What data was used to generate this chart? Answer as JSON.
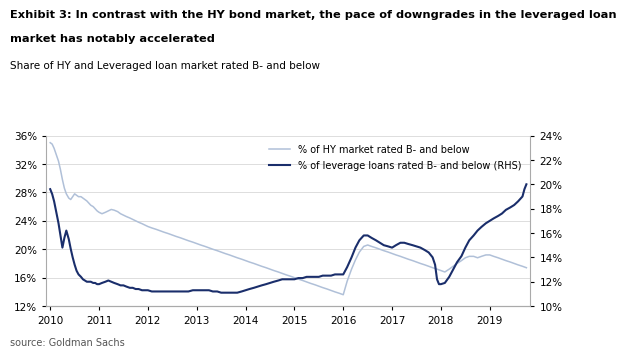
{
  "title_line1": "Exhibit 3: In contrast with the HY bond market, the pace of downgrades in the leveraged loan",
  "title_line2": "market has notably accelerated",
  "subtitle": "Share of HY and Leveraged loan market rated B- and below",
  "source": "source: Goldman Sachs",
  "legend1": "% of HY market rated B- and below",
  "legend2": "% of leverage loans rated B- and below (RHS)",
  "color_hy": "#b0c0d8",
  "color_ll": "#1a2e6b",
  "ylim_left": [
    0.12,
    0.36
  ],
  "ylim_right": [
    0.1,
    0.24
  ],
  "yticks_left": [
    0.12,
    0.16,
    0.2,
    0.24,
    0.28,
    0.32,
    0.36
  ],
  "yticks_right": [
    0.1,
    0.12,
    0.14,
    0.16,
    0.18,
    0.2,
    0.22,
    0.24
  ],
  "hy_data": [
    [
      2010.0,
      0.35
    ],
    [
      2010.04,
      0.348
    ],
    [
      2010.08,
      0.342
    ],
    [
      2010.12,
      0.334
    ],
    [
      2010.17,
      0.324
    ],
    [
      2010.21,
      0.312
    ],
    [
      2010.25,
      0.298
    ],
    [
      2010.29,
      0.286
    ],
    [
      2010.33,
      0.278
    ],
    [
      2010.38,
      0.272
    ],
    [
      2010.42,
      0.27
    ],
    [
      2010.46,
      0.274
    ],
    [
      2010.5,
      0.278
    ],
    [
      2010.54,
      0.276
    ],
    [
      2010.58,
      0.274
    ],
    [
      2010.63,
      0.274
    ],
    [
      2010.67,
      0.272
    ],
    [
      2010.71,
      0.27
    ],
    [
      2010.75,
      0.268
    ],
    [
      2010.79,
      0.265
    ],
    [
      2010.83,
      0.262
    ],
    [
      2010.88,
      0.26
    ],
    [
      2010.92,
      0.257
    ],
    [
      2010.96,
      0.254
    ],
    [
      2011.0,
      0.252
    ],
    [
      2011.06,
      0.25
    ],
    [
      2011.13,
      0.252
    ],
    [
      2011.19,
      0.254
    ],
    [
      2011.25,
      0.256
    ],
    [
      2011.31,
      0.255
    ],
    [
      2011.38,
      0.253
    ],
    [
      2011.44,
      0.25
    ],
    [
      2011.5,
      0.248
    ],
    [
      2011.56,
      0.246
    ],
    [
      2011.63,
      0.244
    ],
    [
      2011.69,
      0.242
    ],
    [
      2011.75,
      0.24
    ],
    [
      2011.81,
      0.238
    ],
    [
      2011.88,
      0.236
    ],
    [
      2011.94,
      0.234
    ],
    [
      2012.0,
      0.232
    ],
    [
      2012.08,
      0.23
    ],
    [
      2012.17,
      0.228
    ],
    [
      2012.25,
      0.226
    ],
    [
      2012.33,
      0.224
    ],
    [
      2012.42,
      0.222
    ],
    [
      2012.5,
      0.22
    ],
    [
      2012.58,
      0.218
    ],
    [
      2012.67,
      0.216
    ],
    [
      2012.75,
      0.214
    ],
    [
      2012.83,
      0.212
    ],
    [
      2012.92,
      0.21
    ],
    [
      2013.0,
      0.208
    ],
    [
      2013.08,
      0.206
    ],
    [
      2013.17,
      0.204
    ],
    [
      2013.25,
      0.202
    ],
    [
      2013.33,
      0.2
    ],
    [
      2013.42,
      0.198
    ],
    [
      2013.5,
      0.196
    ],
    [
      2013.58,
      0.194
    ],
    [
      2013.67,
      0.192
    ],
    [
      2013.75,
      0.19
    ],
    [
      2013.83,
      0.188
    ],
    [
      2013.92,
      0.186
    ],
    [
      2014.0,
      0.184
    ],
    [
      2014.08,
      0.182
    ],
    [
      2014.17,
      0.18
    ],
    [
      2014.25,
      0.178
    ],
    [
      2014.33,
      0.176
    ],
    [
      2014.42,
      0.174
    ],
    [
      2014.5,
      0.172
    ],
    [
      2014.58,
      0.17
    ],
    [
      2014.67,
      0.168
    ],
    [
      2014.75,
      0.166
    ],
    [
      2014.83,
      0.164
    ],
    [
      2014.92,
      0.162
    ],
    [
      2015.0,
      0.16
    ],
    [
      2015.08,
      0.158
    ],
    [
      2015.17,
      0.156
    ],
    [
      2015.25,
      0.154
    ],
    [
      2015.33,
      0.152
    ],
    [
      2015.42,
      0.15
    ],
    [
      2015.5,
      0.148
    ],
    [
      2015.58,
      0.146
    ],
    [
      2015.67,
      0.144
    ],
    [
      2015.75,
      0.142
    ],
    [
      2015.83,
      0.14
    ],
    [
      2015.92,
      0.138
    ],
    [
      2016.0,
      0.136
    ],
    [
      2016.08,
      0.155
    ],
    [
      2016.17,
      0.172
    ],
    [
      2016.25,
      0.185
    ],
    [
      2016.33,
      0.196
    ],
    [
      2016.42,
      0.204
    ],
    [
      2016.5,
      0.206
    ],
    [
      2016.58,
      0.204
    ],
    [
      2016.67,
      0.202
    ],
    [
      2016.75,
      0.2
    ],
    [
      2016.83,
      0.198
    ],
    [
      2016.92,
      0.196
    ],
    [
      2017.0,
      0.194
    ],
    [
      2017.08,
      0.192
    ],
    [
      2017.17,
      0.19
    ],
    [
      2017.25,
      0.188
    ],
    [
      2017.33,
      0.186
    ],
    [
      2017.42,
      0.184
    ],
    [
      2017.5,
      0.182
    ],
    [
      2017.58,
      0.18
    ],
    [
      2017.67,
      0.178
    ],
    [
      2017.75,
      0.176
    ],
    [
      2017.83,
      0.174
    ],
    [
      2017.92,
      0.172
    ],
    [
      2018.0,
      0.17
    ],
    [
      2018.08,
      0.168
    ],
    [
      2018.17,
      0.172
    ],
    [
      2018.25,
      0.176
    ],
    [
      2018.33,
      0.18
    ],
    [
      2018.42,
      0.184
    ],
    [
      2018.5,
      0.188
    ],
    [
      2018.58,
      0.19
    ],
    [
      2018.67,
      0.19
    ],
    [
      2018.75,
      0.188
    ],
    [
      2018.83,
      0.19
    ],
    [
      2018.92,
      0.192
    ],
    [
      2019.0,
      0.192
    ],
    [
      2019.08,
      0.19
    ],
    [
      2019.17,
      0.188
    ],
    [
      2019.25,
      0.186
    ],
    [
      2019.33,
      0.184
    ],
    [
      2019.42,
      0.182
    ],
    [
      2019.5,
      0.18
    ],
    [
      2019.58,
      0.178
    ],
    [
      2019.67,
      0.176
    ],
    [
      2019.75,
      0.174
    ]
  ],
  "ll_data": [
    [
      2010.0,
      0.196
    ],
    [
      2010.04,
      0.192
    ],
    [
      2010.08,
      0.186
    ],
    [
      2010.12,
      0.178
    ],
    [
      2010.17,
      0.168
    ],
    [
      2010.21,
      0.158
    ],
    [
      2010.25,
      0.148
    ],
    [
      2010.29,
      0.156
    ],
    [
      2010.33,
      0.162
    ],
    [
      2010.38,
      0.155
    ],
    [
      2010.42,
      0.147
    ],
    [
      2010.46,
      0.14
    ],
    [
      2010.5,
      0.134
    ],
    [
      2010.54,
      0.129
    ],
    [
      2010.58,
      0.126
    ],
    [
      2010.63,
      0.124
    ],
    [
      2010.67,
      0.122
    ],
    [
      2010.71,
      0.121
    ],
    [
      2010.75,
      0.12
    ],
    [
      2010.79,
      0.12
    ],
    [
      2010.83,
      0.12
    ],
    [
      2010.88,
      0.119
    ],
    [
      2010.92,
      0.119
    ],
    [
      2010.96,
      0.118
    ],
    [
      2011.0,
      0.118
    ],
    [
      2011.06,
      0.119
    ],
    [
      2011.13,
      0.12
    ],
    [
      2011.19,
      0.121
    ],
    [
      2011.25,
      0.12
    ],
    [
      2011.31,
      0.119
    ],
    [
      2011.38,
      0.118
    ],
    [
      2011.44,
      0.117
    ],
    [
      2011.5,
      0.117
    ],
    [
      2011.56,
      0.116
    ],
    [
      2011.63,
      0.115
    ],
    [
      2011.69,
      0.115
    ],
    [
      2011.75,
      0.114
    ],
    [
      2011.81,
      0.114
    ],
    [
      2011.88,
      0.113
    ],
    [
      2011.94,
      0.113
    ],
    [
      2012.0,
      0.113
    ],
    [
      2012.08,
      0.112
    ],
    [
      2012.17,
      0.112
    ],
    [
      2012.25,
      0.112
    ],
    [
      2012.33,
      0.112
    ],
    [
      2012.42,
      0.112
    ],
    [
      2012.5,
      0.112
    ],
    [
      2012.58,
      0.112
    ],
    [
      2012.67,
      0.112
    ],
    [
      2012.75,
      0.112
    ],
    [
      2012.83,
      0.112
    ],
    [
      2012.92,
      0.113
    ],
    [
      2013.0,
      0.113
    ],
    [
      2013.08,
      0.113
    ],
    [
      2013.17,
      0.113
    ],
    [
      2013.25,
      0.113
    ],
    [
      2013.33,
      0.112
    ],
    [
      2013.42,
      0.112
    ],
    [
      2013.5,
      0.111
    ],
    [
      2013.58,
      0.111
    ],
    [
      2013.67,
      0.111
    ],
    [
      2013.75,
      0.111
    ],
    [
      2013.83,
      0.111
    ],
    [
      2013.92,
      0.112
    ],
    [
      2014.0,
      0.113
    ],
    [
      2014.08,
      0.114
    ],
    [
      2014.17,
      0.115
    ],
    [
      2014.25,
      0.116
    ],
    [
      2014.33,
      0.117
    ],
    [
      2014.42,
      0.118
    ],
    [
      2014.5,
      0.119
    ],
    [
      2014.58,
      0.12
    ],
    [
      2014.67,
      0.121
    ],
    [
      2014.75,
      0.122
    ],
    [
      2014.83,
      0.122
    ],
    [
      2014.92,
      0.122
    ],
    [
      2015.0,
      0.122
    ],
    [
      2015.08,
      0.123
    ],
    [
      2015.17,
      0.123
    ],
    [
      2015.25,
      0.124
    ],
    [
      2015.33,
      0.124
    ],
    [
      2015.42,
      0.124
    ],
    [
      2015.5,
      0.124
    ],
    [
      2015.58,
      0.125
    ],
    [
      2015.67,
      0.125
    ],
    [
      2015.75,
      0.125
    ],
    [
      2015.83,
      0.126
    ],
    [
      2015.92,
      0.126
    ],
    [
      2016.0,
      0.126
    ],
    [
      2016.08,
      0.132
    ],
    [
      2016.17,
      0.14
    ],
    [
      2016.25,
      0.148
    ],
    [
      2016.33,
      0.154
    ],
    [
      2016.42,
      0.158
    ],
    [
      2016.5,
      0.158
    ],
    [
      2016.58,
      0.156
    ],
    [
      2016.67,
      0.154
    ],
    [
      2016.75,
      0.152
    ],
    [
      2016.83,
      0.15
    ],
    [
      2016.92,
      0.149
    ],
    [
      2017.0,
      0.148
    ],
    [
      2017.08,
      0.15
    ],
    [
      2017.17,
      0.152
    ],
    [
      2017.25,
      0.152
    ],
    [
      2017.33,
      0.151
    ],
    [
      2017.42,
      0.15
    ],
    [
      2017.5,
      0.149
    ],
    [
      2017.58,
      0.148
    ],
    [
      2017.67,
      0.146
    ],
    [
      2017.75,
      0.144
    ],
    [
      2017.83,
      0.14
    ],
    [
      2017.88,
      0.134
    ],
    [
      2017.92,
      0.122
    ],
    [
      2017.96,
      0.118
    ],
    [
      2018.0,
      0.118
    ],
    [
      2018.08,
      0.119
    ],
    [
      2018.17,
      0.124
    ],
    [
      2018.25,
      0.13
    ],
    [
      2018.33,
      0.136
    ],
    [
      2018.42,
      0.141
    ],
    [
      2018.5,
      0.148
    ],
    [
      2018.58,
      0.154
    ],
    [
      2018.67,
      0.158
    ],
    [
      2018.75,
      0.162
    ],
    [
      2018.83,
      0.165
    ],
    [
      2018.92,
      0.168
    ],
    [
      2019.0,
      0.17
    ],
    [
      2019.08,
      0.172
    ],
    [
      2019.17,
      0.174
    ],
    [
      2019.25,
      0.176
    ],
    [
      2019.33,
      0.179
    ],
    [
      2019.42,
      0.181
    ],
    [
      2019.5,
      0.183
    ],
    [
      2019.58,
      0.186
    ],
    [
      2019.67,
      0.19
    ],
    [
      2019.71,
      0.196
    ],
    [
      2019.75,
      0.2
    ]
  ]
}
